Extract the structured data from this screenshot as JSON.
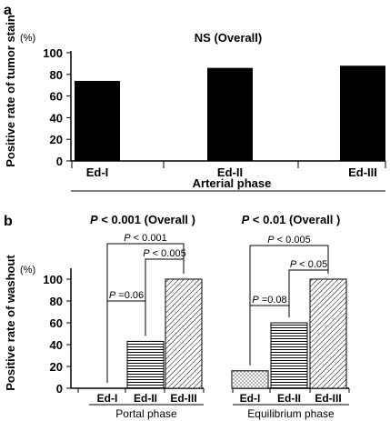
{
  "chart_data": [
    {
      "panel_label": "a",
      "type": "bar",
      "title": "NS (Overall)",
      "unit_label": "(%)",
      "ylabel": "Positive rate of tumor stain",
      "xlabel": "Arterial phase",
      "ylim": [
        0,
        100
      ],
      "yticks": [
        "0",
        "20",
        "40",
        "60",
        "80",
        "100"
      ],
      "categories": [
        "Ed-I",
        "Ed-II",
        "Ed-III"
      ],
      "values": [
        74,
        86,
        88
      ],
      "bar_color": "#000000",
      "grid": false
    },
    {
      "panel_label": "b",
      "type": "bar",
      "unit_label": "(%)",
      "ylabel": "Positive rate of washout",
      "ylim": [
        0,
        100
      ],
      "yticks": [
        "0",
        "20",
        "40",
        "60",
        "80",
        "100"
      ],
      "grid": false,
      "groups": [
        {
          "xlabel": "Portal phase",
          "overall": {
            "p": "P",
            "rest": " < 0.001 (Overall )"
          },
          "categories": [
            "Ed-I",
            "Ed-II",
            "Ed-III"
          ],
          "values": [
            0,
            43,
            100
          ],
          "patterns": [
            "dots",
            "horizontal",
            "diagonal"
          ],
          "comparisons": [
            {
              "from": 0,
              "to": 1,
              "p": "P",
              "rest": " =0.06"
            },
            {
              "from": 1,
              "to": 2,
              "p": "P",
              "rest": " < 0.005"
            },
            {
              "from": 0,
              "to": 2,
              "p": "P",
              "rest": " < 0.001"
            }
          ]
        },
        {
          "xlabel": "Equilibrium phase",
          "overall": {
            "p": "P",
            "rest": " < 0.01 (Overall )"
          },
          "categories": [
            "Ed-I",
            "Ed-II",
            "Ed-III"
          ],
          "values": [
            16,
            60,
            100
          ],
          "patterns": [
            "dots",
            "horizontal",
            "diagonal"
          ],
          "comparisons": [
            {
              "from": 0,
              "to": 1,
              "p": "P",
              "rest": " =0.08"
            },
            {
              "from": 1,
              "to": 2,
              "p": "P",
              "rest": " < 0.05"
            },
            {
              "from": 0,
              "to": 2,
              "p": "P",
              "rest": " < 0.005"
            }
          ]
        }
      ]
    }
  ]
}
